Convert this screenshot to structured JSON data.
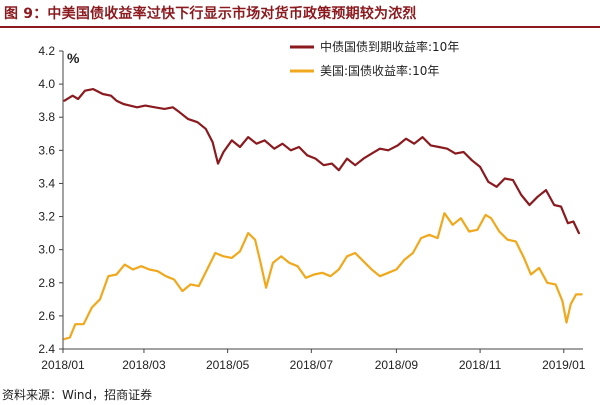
{
  "title": "图 9：中美国债收益率过快下行显示市场对货币政策预期较为浓烈",
  "source": "资料来源：Wind，招商证券",
  "colors": {
    "china": "#8b1a1f",
    "us": "#f0a81c",
    "title": "#8b1a1f"
  },
  "chart_data": {
    "type": "line",
    "unit_label": "%",
    "ylim": [
      2.4,
      4.2
    ],
    "yticks": [
      "2.4",
      "2.6",
      "2.8",
      "3.0",
      "3.2",
      "3.4",
      "3.6",
      "3.8",
      "4.0",
      "4.2"
    ],
    "xlim": [
      "2018-01-01",
      "2019-01-15"
    ],
    "xticks": [
      {
        "date": "2018-01-01",
        "label": "2018/01"
      },
      {
        "date": "2018-03-01",
        "label": "2018/03"
      },
      {
        "date": "2018-05-01",
        "label": "2018/05"
      },
      {
        "date": "2018-07-01",
        "label": "2018/07"
      },
      {
        "date": "2018-09-01",
        "label": "2018/09"
      },
      {
        "date": "2018-11-01",
        "label": "2018/11"
      },
      {
        "date": "2019-01-01",
        "label": "2019/01"
      }
    ],
    "legend_position": "top-right",
    "grid": false,
    "series": [
      {
        "name": "中债国债到期收益率:10年",
        "color": "#8b1a1f",
        "points": [
          [
            "2018-01-02",
            3.9
          ],
          [
            "2018-01-08",
            3.93
          ],
          [
            "2018-01-12",
            3.91
          ],
          [
            "2018-01-17",
            3.96
          ],
          [
            "2018-01-23",
            3.97
          ],
          [
            "2018-01-30",
            3.94
          ],
          [
            "2018-02-05",
            3.93
          ],
          [
            "2018-02-09",
            3.9
          ],
          [
            "2018-02-14",
            3.88
          ],
          [
            "2018-02-24",
            3.86
          ],
          [
            "2018-03-02",
            3.87
          ],
          [
            "2018-03-09",
            3.86
          ],
          [
            "2018-03-16",
            3.85
          ],
          [
            "2018-03-22",
            3.86
          ],
          [
            "2018-03-27",
            3.83
          ],
          [
            "2018-04-02",
            3.79
          ],
          [
            "2018-04-09",
            3.77
          ],
          [
            "2018-04-15",
            3.73
          ],
          [
            "2018-04-20",
            3.65
          ],
          [
            "2018-04-24",
            3.52
          ],
          [
            "2018-04-28",
            3.59
          ],
          [
            "2018-05-04",
            3.66
          ],
          [
            "2018-05-10",
            3.62
          ],
          [
            "2018-05-16",
            3.68
          ],
          [
            "2018-05-22",
            3.64
          ],
          [
            "2018-05-28",
            3.66
          ],
          [
            "2018-06-04",
            3.61
          ],
          [
            "2018-06-10",
            3.64
          ],
          [
            "2018-06-16",
            3.6
          ],
          [
            "2018-06-22",
            3.62
          ],
          [
            "2018-06-28",
            3.57
          ],
          [
            "2018-07-04",
            3.55
          ],
          [
            "2018-07-10",
            3.51
          ],
          [
            "2018-07-16",
            3.52
          ],
          [
            "2018-07-21",
            3.48
          ],
          [
            "2018-07-27",
            3.55
          ],
          [
            "2018-08-02",
            3.51
          ],
          [
            "2018-08-08",
            3.55
          ],
          [
            "2018-08-14",
            3.58
          ],
          [
            "2018-08-20",
            3.61
          ],
          [
            "2018-08-26",
            3.6
          ],
          [
            "2018-09-02",
            3.63
          ],
          [
            "2018-09-08",
            3.67
          ],
          [
            "2018-09-14",
            3.64
          ],
          [
            "2018-09-20",
            3.68
          ],
          [
            "2018-09-26",
            3.63
          ],
          [
            "2018-10-02",
            3.62
          ],
          [
            "2018-10-08",
            3.61
          ],
          [
            "2018-10-14",
            3.58
          ],
          [
            "2018-10-20",
            3.59
          ],
          [
            "2018-10-26",
            3.54
          ],
          [
            "2018-11-01",
            3.5
          ],
          [
            "2018-11-07",
            3.41
          ],
          [
            "2018-11-13",
            3.38
          ],
          [
            "2018-11-19",
            3.43
          ],
          [
            "2018-11-25",
            3.42
          ],
          [
            "2018-12-01",
            3.33
          ],
          [
            "2018-12-07",
            3.27
          ],
          [
            "2018-12-13",
            3.32
          ],
          [
            "2018-12-19",
            3.36
          ],
          [
            "2018-12-25",
            3.27
          ],
          [
            "2018-12-30",
            3.26
          ],
          [
            "2019-01-04",
            3.16
          ],
          [
            "2019-01-08",
            3.17
          ],
          [
            "2019-01-12",
            3.1
          ]
        ]
      },
      {
        "name": "美国:国债收益率:10年",
        "color": "#f0a81c",
        "points": [
          [
            "2018-01-02",
            2.46
          ],
          [
            "2018-01-06",
            2.47
          ],
          [
            "2018-01-10",
            2.55
          ],
          [
            "2018-01-16",
            2.55
          ],
          [
            "2018-01-22",
            2.65
          ],
          [
            "2018-01-28",
            2.7
          ],
          [
            "2018-02-03",
            2.84
          ],
          [
            "2018-02-09",
            2.85
          ],
          [
            "2018-02-15",
            2.91
          ],
          [
            "2018-02-21",
            2.88
          ],
          [
            "2018-02-27",
            2.9
          ],
          [
            "2018-03-05",
            2.88
          ],
          [
            "2018-03-11",
            2.87
          ],
          [
            "2018-03-17",
            2.84
          ],
          [
            "2018-03-23",
            2.82
          ],
          [
            "2018-03-29",
            2.75
          ],
          [
            "2018-04-04",
            2.79
          ],
          [
            "2018-04-10",
            2.78
          ],
          [
            "2018-04-16",
            2.88
          ],
          [
            "2018-04-22",
            2.98
          ],
          [
            "2018-04-28",
            2.96
          ],
          [
            "2018-05-04",
            2.95
          ],
          [
            "2018-05-10",
            2.99
          ],
          [
            "2018-05-16",
            3.1
          ],
          [
            "2018-05-21",
            3.06
          ],
          [
            "2018-05-25",
            2.92
          ],
          [
            "2018-05-29",
            2.77
          ],
          [
            "2018-06-03",
            2.92
          ],
          [
            "2018-06-09",
            2.96
          ],
          [
            "2018-06-15",
            2.92
          ],
          [
            "2018-06-21",
            2.9
          ],
          [
            "2018-06-27",
            2.83
          ],
          [
            "2018-07-03",
            2.85
          ],
          [
            "2018-07-09",
            2.86
          ],
          [
            "2018-07-15",
            2.84
          ],
          [
            "2018-07-21",
            2.88
          ],
          [
            "2018-07-27",
            2.96
          ],
          [
            "2018-08-02",
            2.98
          ],
          [
            "2018-08-08",
            2.93
          ],
          [
            "2018-08-14",
            2.88
          ],
          [
            "2018-08-20",
            2.84
          ],
          [
            "2018-08-26",
            2.86
          ],
          [
            "2018-09-01",
            2.88
          ],
          [
            "2018-09-07",
            2.94
          ],
          [
            "2018-09-13",
            2.98
          ],
          [
            "2018-09-19",
            3.07
          ],
          [
            "2018-09-25",
            3.09
          ],
          [
            "2018-10-01",
            3.07
          ],
          [
            "2018-10-06",
            3.22
          ],
          [
            "2018-10-12",
            3.15
          ],
          [
            "2018-10-18",
            3.19
          ],
          [
            "2018-10-24",
            3.11
          ],
          [
            "2018-10-30",
            3.12
          ],
          [
            "2018-11-05",
            3.21
          ],
          [
            "2018-11-09",
            3.19
          ],
          [
            "2018-11-15",
            3.11
          ],
          [
            "2018-11-21",
            3.06
          ],
          [
            "2018-11-27",
            3.05
          ],
          [
            "2018-12-03",
            2.95
          ],
          [
            "2018-12-08",
            2.85
          ],
          [
            "2018-12-14",
            2.89
          ],
          [
            "2018-12-20",
            2.8
          ],
          [
            "2018-12-26",
            2.79
          ],
          [
            "2018-12-31",
            2.69
          ],
          [
            "2019-01-03",
            2.56
          ],
          [
            "2019-01-06",
            2.67
          ],
          [
            "2019-01-10",
            2.73
          ],
          [
            "2019-01-14",
            2.73
          ]
        ]
      }
    ]
  }
}
